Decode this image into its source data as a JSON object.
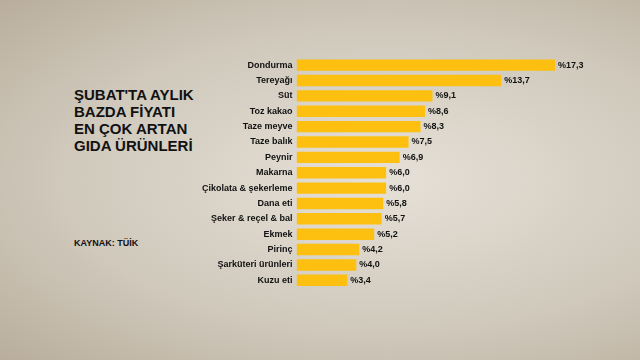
{
  "chart_data": {
    "type": "bar",
    "title": "ŞUBAT'TA AYLIK BAZDA FİYATI EN ÇOK ARTAN GIDA ÜRÜNLERİ",
    "subtitle": "KAYNAK: TÜİK",
    "orientation": "horizontal",
    "categories": [
      "Dondurma",
      "Tereyağı",
      "Süt",
      "Toz kakao",
      "Taze meyve",
      "Taze balık",
      "Peynir",
      "Makarna",
      "Çikolata & şekerleme",
      "Dana eti",
      "Şeker & reçel & bal",
      "Ekmek",
      "Pirinç",
      "Şarküteri ürünleri",
      "Kuzu eti"
    ],
    "values": [
      17.3,
      13.7,
      9.1,
      8.6,
      8.3,
      7.5,
      6.9,
      6.0,
      6.0,
      5.8,
      5.7,
      5.2,
      4.2,
      4.0,
      3.4
    ],
    "value_labels": [
      "%17,3",
      "%13,7",
      "%9,1",
      "%8,6",
      "%8,3",
      "%7,5",
      "%6,9",
      "%6,0",
      "%6,0",
      "%5,8",
      "%5,7",
      "%5,2",
      "%4,2",
      "%4,0",
      "%3,4"
    ],
    "color": "#fdc010",
    "xlim": [
      0,
      17.3
    ],
    "data_labels": true,
    "grid": false,
    "tick_labels": "y"
  }
}
